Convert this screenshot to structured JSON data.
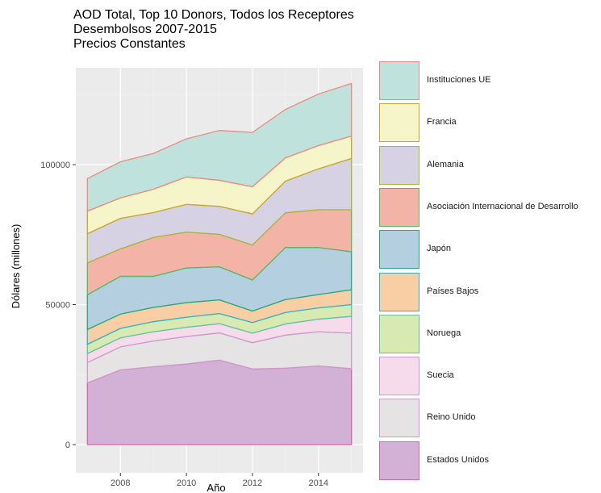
{
  "chart_data": {
    "type": "area",
    "stacked": true,
    "title_lines": [
      "AOD Total, Top 10 Donors, Todos los Receptores",
      "Desembolsos 2007-2015",
      "Precios Constantes"
    ],
    "xlabel": "Año",
    "ylabel": "Dólares (millones)",
    "x": [
      2007,
      2008,
      2009,
      2010,
      2011,
      2012,
      2013,
      2014,
      2015
    ],
    "x_ticks": [
      "2008",
      "2010",
      "2012",
      "2014"
    ],
    "y_ticks": [
      "0",
      "50000",
      "100000"
    ],
    "ylim": [
      0,
      128000
    ],
    "grid": true,
    "legend_position": "right",
    "series": [
      {
        "name": "Estados Unidos",
        "fill": "#d3b1d6",
        "stroke": "#d865a6",
        "values": [
          22000,
          26700,
          27800,
          28800,
          30200,
          27000,
          27300,
          28100,
          27100
        ]
      },
      {
        "name": "Reino Unido",
        "fill": "#e5e3e3",
        "stroke": "#cc99cc",
        "values": [
          7300,
          8200,
          9200,
          9800,
          9700,
          9400,
          11800,
          12200,
          12700
        ]
      },
      {
        "name": "Suecia",
        "fill": "#f6dbea",
        "stroke": "#cc9acb",
        "values": [
          3200,
          3200,
          3300,
          3300,
          3300,
          3400,
          4000,
          4500,
          6000
        ]
      },
      {
        "name": "Noruega",
        "fill": "#d7eab2",
        "stroke": "#5fc3a0",
        "values": [
          3300,
          3400,
          3600,
          3600,
          3600,
          3800,
          4100,
          4000,
          4200
        ]
      },
      {
        "name": "Países Bajos",
        "fill": "#f8cfa5",
        "stroke": "#33b0c9",
        "values": [
          5300,
          5100,
          5100,
          5200,
          4900,
          4100,
          4600,
          4800,
          5300
        ]
      },
      {
        "name": "Japón",
        "fill": "#b3cfe0",
        "stroke": "#27a875",
        "values": [
          12400,
          13500,
          11100,
          12400,
          11800,
          11100,
          18600,
          16800,
          13600
        ]
      },
      {
        "name": "Asociación Internacional de Desarrollo",
        "fill": "#f3b3a7",
        "stroke": "#5cb85c",
        "values": [
          11400,
          9800,
          13900,
          12800,
          11600,
          12500,
          12400,
          13500,
          15000
        ]
      },
      {
        "name": "Alemania",
        "fill": "#d6d2e4",
        "stroke": "#a5b836",
        "values": [
          10400,
          10900,
          8900,
          9900,
          10000,
          11100,
          11300,
          14600,
          18300
        ]
      },
      {
        "name": "Francia",
        "fill": "#f5f5c9",
        "stroke": "#c9a52c",
        "values": [
          8100,
          7300,
          8300,
          9800,
          9300,
          9700,
          8300,
          8300,
          8000
        ]
      },
      {
        "name": "Instituciones UE",
        "fill": "#bfe2dc",
        "stroke": "#e98a82",
        "values": [
          11600,
          12900,
          12800,
          13600,
          17800,
          19400,
          17300,
          18400,
          18800
        ]
      }
    ]
  }
}
